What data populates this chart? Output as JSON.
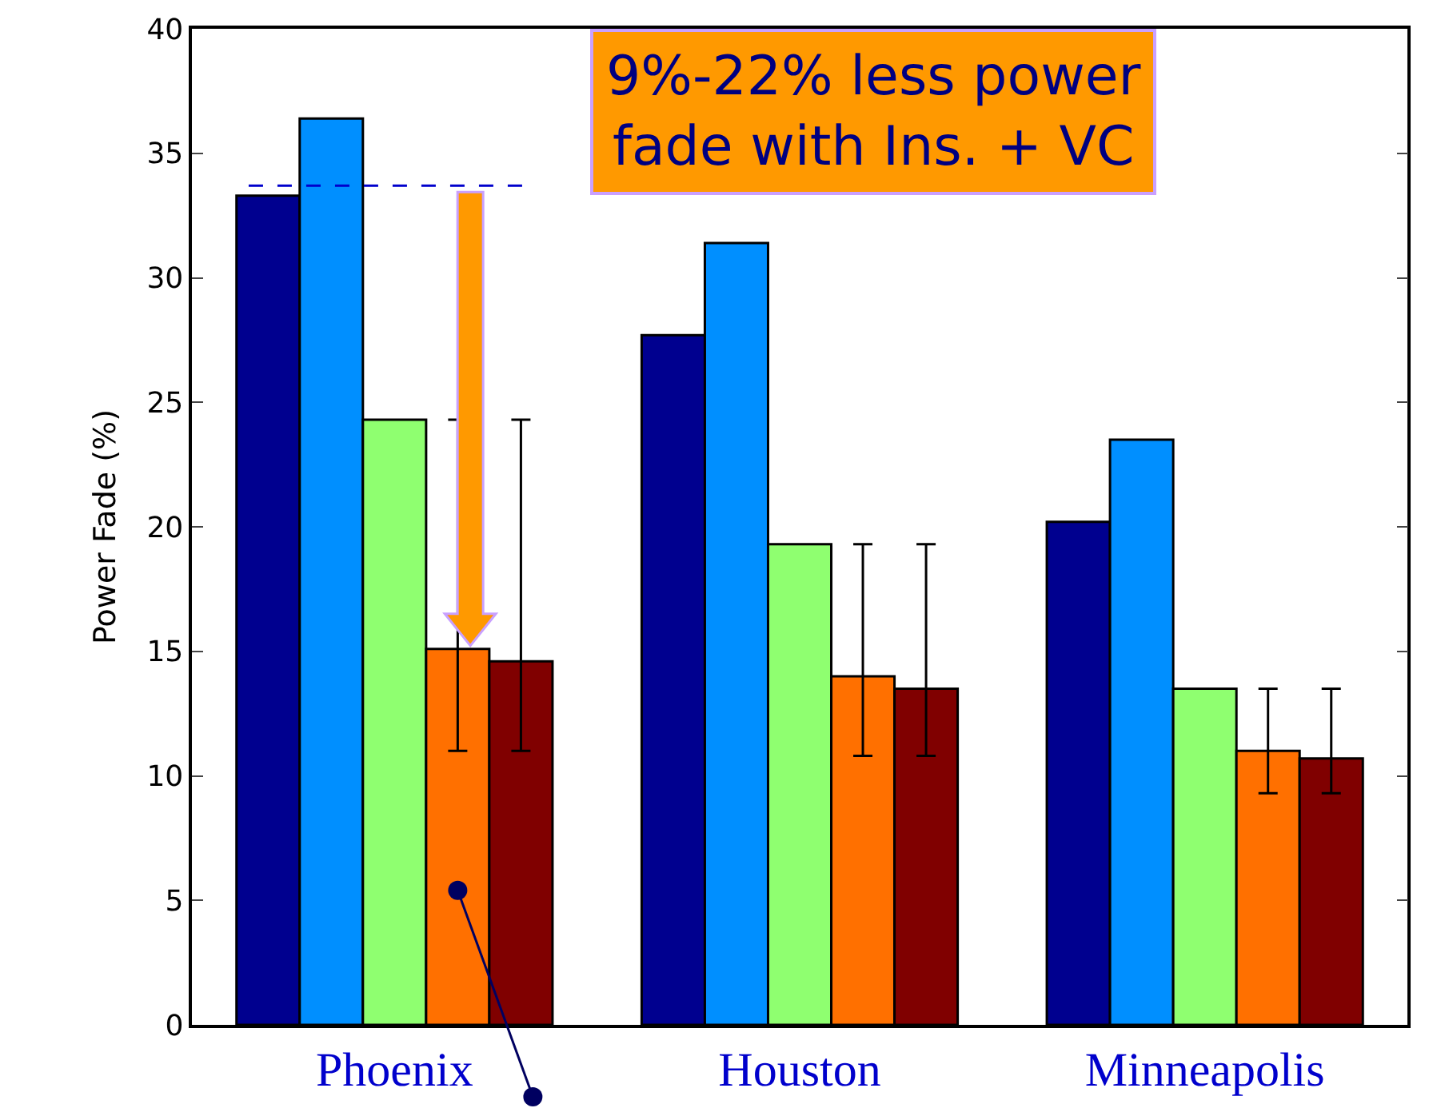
{
  "chart_data": {
    "type": "bar",
    "ylabel": "Power Fade (%)",
    "categories": [
      "Phoenix",
      "Houston",
      "Minneapolis"
    ],
    "series": [
      {
        "color": "#00008f",
        "values": [
          33.3,
          27.7,
          20.2
        ]
      },
      {
        "color": "#008fff",
        "values": [
          36.4,
          31.4,
          23.5
        ]
      },
      {
        "color": "#8fff70",
        "values": [
          24.3,
          19.3,
          13.5
        ]
      },
      {
        "color": "#ff7000",
        "values": [
          15.1,
          14.0,
          11.0
        ],
        "errors": [
          [
            11.0,
            24.3
          ],
          [
            10.8,
            19.3
          ],
          [
            9.3,
            13.5
          ]
        ]
      },
      {
        "color": "#800000",
        "values": [
          14.6,
          13.5,
          10.7
        ],
        "errors": [
          [
            11.0,
            24.3
          ],
          [
            10.8,
            19.3
          ],
          [
            9.3,
            13.5
          ]
        ]
      }
    ],
    "ylim": [
      0,
      40
    ],
    "yticks": [
      0,
      5,
      10,
      15,
      20,
      25,
      30,
      35,
      40
    ],
    "grid": false,
    "ref_lines": [
      {
        "axis": "y",
        "value": 33.7,
        "color": "#0000cc",
        "line_style": "dashed"
      }
    ],
    "annotations": [
      "9%-22% less power fade with Ins. + VC"
    ]
  }
}
